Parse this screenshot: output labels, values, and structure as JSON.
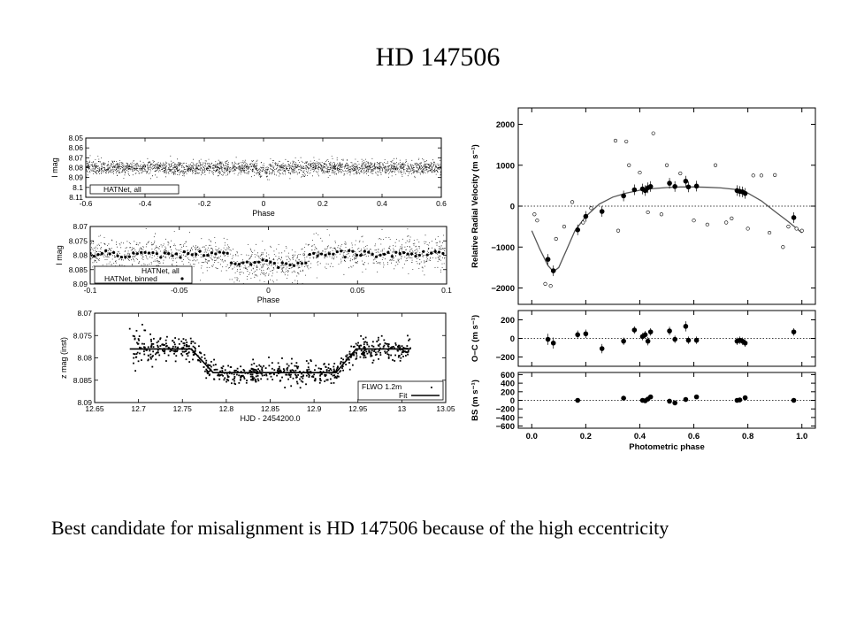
{
  "slide": {
    "title": "HD 147506",
    "caption": "Best candidate for misalignment is HD 147506 because of the high eccentricity"
  },
  "chart_data": [
    {
      "type": "scatter",
      "id": "lc1",
      "xlabel": "Phase",
      "ylabel": "I mag",
      "xlim": [
        -0.6,
        0.6
      ],
      "ylim": [
        8.05,
        8.11
      ],
      "y_inverted": true,
      "x_ticks": [
        "-0.6",
        "-0.4",
        "-0.2",
        "0",
        "0.2",
        "0.4",
        "0.6"
      ],
      "y_ticks": [
        "8.05",
        "8.06",
        "8.07",
        "8.08",
        "8.09",
        "8.1",
        "8.11"
      ],
      "legend": [
        "HATNet, all"
      ],
      "model": {
        "baseline": 8.08,
        "scatter": 0.0035,
        "transit_center": 0.0,
        "transit_half_width": 0.022,
        "depth": 0.0034
      }
    },
    {
      "type": "scatter",
      "id": "lc2",
      "xlabel": "Phase",
      "ylabel": "I mag",
      "xlim": [
        -0.1,
        0.1
      ],
      "ylim": [
        8.07,
        8.09
      ],
      "y_inverted": true,
      "x_ticks": [
        "-0.1",
        "-0.05",
        "0",
        "0.05",
        "0.1"
      ],
      "y_ticks": [
        "8.07",
        "8.075",
        "8.08",
        "8.085",
        "8.09"
      ],
      "legend": [
        "HATNet, all",
        "HATNet, binned"
      ],
      "model": {
        "baseline": 8.0795,
        "scatter": 0.0028,
        "transit_center": 0.0,
        "transit_half_width": 0.022,
        "depth": 0.0034
      }
    },
    {
      "type": "scatter",
      "id": "lc3",
      "xlabel": "HJD - 2454200.0",
      "ylabel": "z mag (inst)",
      "xlim": [
        12.65,
        13.05
      ],
      "ylim": [
        8.07,
        8.09
      ],
      "y_inverted": true,
      "x_ticks": [
        "12.65",
        "12.7",
        "12.75",
        "12.8",
        "12.85",
        "12.9",
        "12.95",
        "13",
        "13.05"
      ],
      "y_ticks": [
        "8.07",
        "8.075",
        "8.08",
        "8.085",
        "8.09"
      ],
      "legend": [
        "FLWO 1.2m",
        "Fit"
      ],
      "fit": {
        "x": [
          12.69,
          12.76,
          12.785,
          12.925,
          12.948,
          13.01
        ],
        "y": [
          8.078,
          8.078,
          8.0833,
          8.0833,
          8.078,
          8.078
        ]
      },
      "model": {
        "x_start": 12.69,
        "x_end": 13.01,
        "scatter": 0.0012
      }
    },
    {
      "type": "scatter",
      "id": "rv",
      "xlabel": "",
      "ylabel": "Relative Radial Velocity (m s⁻¹)",
      "xlim": [
        -0.05,
        1.05
      ],
      "ylim": [
        -2400,
        2400
      ],
      "y_ticks": [
        -2000,
        -1000,
        0,
        1000,
        2000
      ],
      "fit_curve": {
        "x": [
          0.0,
          0.03,
          0.06,
          0.08,
          0.1,
          0.13,
          0.16,
          0.2,
          0.25,
          0.3,
          0.35,
          0.4,
          0.45,
          0.5,
          0.55,
          0.6,
          0.65,
          0.7,
          0.75,
          0.8,
          0.85,
          0.9,
          0.95,
          1.0
        ],
        "y": [
          -600,
          -1050,
          -1450,
          -1600,
          -1500,
          -1050,
          -600,
          -250,
          50,
          220,
          320,
          390,
          430,
          455,
          470,
          470,
          460,
          445,
          410,
          320,
          130,
          -130,
          -380,
          -650
        ]
      },
      "points_filled": {
        "x": [
          0.06,
          0.08,
          0.17,
          0.2,
          0.26,
          0.34,
          0.38,
          0.41,
          0.42,
          0.43,
          0.44,
          0.51,
          0.53,
          0.57,
          0.58,
          0.61,
          0.76,
          0.77,
          0.78,
          0.79,
          0.97
        ],
        "y": [
          -1300,
          -1580,
          -580,
          -250,
          -130,
          250,
          400,
          420,
          380,
          450,
          480,
          560,
          480,
          610,
          470,
          490,
          380,
          360,
          350,
          310,
          -280
        ]
      },
      "points_open": {
        "x": [
          0.01,
          0.02,
          0.05,
          0.07,
          0.09,
          0.12,
          0.15,
          0.19,
          0.22,
          0.31,
          0.32,
          0.35,
          0.36,
          0.4,
          0.43,
          0.45,
          0.48,
          0.5,
          0.55,
          0.6,
          0.65,
          0.68,
          0.72,
          0.74,
          0.8,
          0.82,
          0.85,
          0.88,
          0.9,
          0.93,
          0.95,
          0.98,
          1.0
        ],
        "y": [
          -200,
          -350,
          -1900,
          -1950,
          -800,
          -500,
          100,
          -400,
          -50,
          1600,
          -600,
          1580,
          1000,
          820,
          -150,
          1780,
          -200,
          1000,
          800,
          -350,
          -450,
          1000,
          -400,
          -300,
          -550,
          750,
          750,
          -650,
          760,
          -1000,
          -500,
          -550,
          -600
        ]
      }
    },
    {
      "type": "scatter",
      "id": "oc",
      "xlabel": "",
      "ylabel": "O−C (m s⁻¹)",
      "xlim": [
        -0.05,
        1.05
      ],
      "ylim": [
        -300,
        300
      ],
      "y_ticks": [
        -200,
        0,
        200
      ],
      "points": {
        "x": [
          0.06,
          0.08,
          0.17,
          0.2,
          0.26,
          0.34,
          0.38,
          0.41,
          0.42,
          0.43,
          0.44,
          0.51,
          0.53,
          0.57,
          0.58,
          0.61,
          0.76,
          0.77,
          0.78,
          0.79,
          0.97
        ],
        "y": [
          -10,
          -50,
          40,
          50,
          -110,
          -30,
          90,
          20,
          40,
          -30,
          70,
          80,
          -10,
          130,
          -20,
          -20,
          -30,
          -20,
          -30,
          -50,
          70
        ],
        "err": [
          60,
          60,
          45,
          45,
          50,
          40,
          40,
          40,
          40,
          45,
          40,
          45,
          40,
          55,
          40,
          40,
          40,
          40,
          40,
          40,
          40
        ]
      }
    },
    {
      "type": "scatter",
      "id": "bs",
      "xlabel": "Photometric phase",
      "ylabel": "BS (m s⁻¹)",
      "xlim": [
        -0.05,
        1.05
      ],
      "ylim": [
        -650,
        650
      ],
      "x_ticks": [
        "0.0",
        "0.2",
        "0.4",
        "0.6",
        "0.8",
        "1.0"
      ],
      "y_ticks": [
        -600,
        -400,
        -200,
        0,
        200,
        400,
        600
      ],
      "points": {
        "x": [
          0.17,
          0.34,
          0.41,
          0.42,
          0.43,
          0.44,
          0.51,
          0.53,
          0.57,
          0.61,
          0.76,
          0.77,
          0.79,
          0.97
        ],
        "y": [
          0,
          50,
          0,
          -10,
          30,
          80,
          -20,
          -60,
          20,
          80,
          0,
          10,
          60,
          0
        ]
      }
    }
  ]
}
